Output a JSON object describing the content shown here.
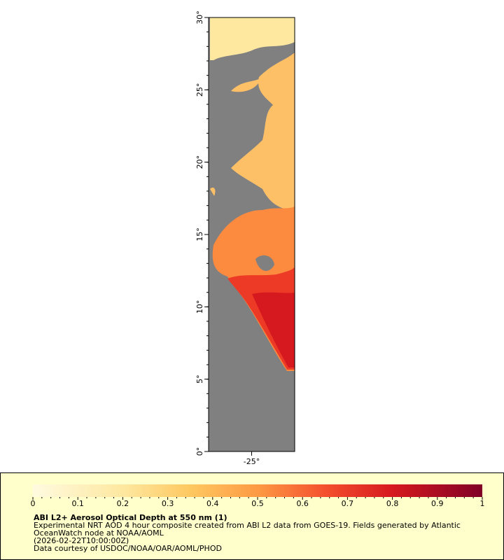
{
  "map": {
    "latlim": [
      0,
      30
    ],
    "lonlim": [
      -28,
      -22
    ],
    "lat_ticks": [
      {
        "value": 0,
        "label": "0°"
      },
      {
        "value": 5,
        "label": "5°"
      },
      {
        "value": 10,
        "label": "10°"
      },
      {
        "value": 15,
        "label": "15°"
      },
      {
        "value": 20,
        "label": "20°"
      },
      {
        "value": 25,
        "label": "25°"
      },
      {
        "value": 30,
        "label": "30°"
      }
    ],
    "lon_ticks": [
      {
        "value": -25,
        "label": "-25°"
      }
    ]
  },
  "colorbar": {
    "range": [
      0,
      1
    ],
    "ticks": [
      0,
      0.1,
      0.2,
      0.3,
      0.4,
      0.5,
      0.6,
      0.7,
      0.8,
      0.9,
      1
    ]
  },
  "legend": {
    "title": "ABI L2+ Aerosol Optical Depth at 550 nm (1)",
    "lines": [
      "Experimental NRT AOD 4 hour composite created from ABI L2 data from GOES-19. Fields generated by Atlantic",
      "OceanWatch node at NOAA/AOML",
      "(2026-02-22T10:00:00Z)",
      "Data courtesy of USDOC/NOAA/OAR/AOML/PHOD"
    ]
  }
}
